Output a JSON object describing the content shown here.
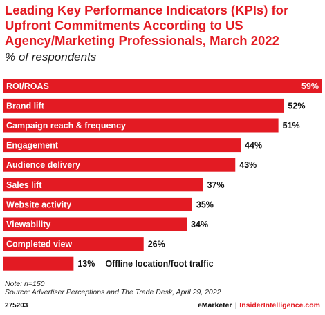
{
  "header": {
    "title": "Leading Key Performance Indicators (KPIs) for Upfront Commitments According to US Agency/Marketing Professionals, March 2022",
    "subtitle": "% of respondents"
  },
  "chart_data": {
    "type": "bar",
    "orientation": "horizontal",
    "categories": [
      "ROI/ROAS",
      "Brand lift",
      "Campaign reach & frequency",
      "Engagement",
      "Audience delivery",
      "Sales lift",
      "Website activity",
      "Viewability",
      "Completed view",
      "Offline location/foot traffic"
    ],
    "values": [
      59,
      52,
      51,
      44,
      43,
      37,
      35,
      34,
      26,
      13
    ],
    "value_labels": [
      "59%",
      "52%",
      "51%",
      "44%",
      "43%",
      "37%",
      "35%",
      "34%",
      "26%",
      "13%"
    ],
    "xlim": [
      0,
      59
    ],
    "bar_color": "#e31b23",
    "label_color_inside": "#ffffff",
    "grid": false,
    "legend": false
  },
  "footer": {
    "note": "Note: n=150",
    "source": "Source: Advertiser Perceptions and The Trade Desk, April 29, 2022",
    "chart_id": "275203",
    "brand_left": "eMarketer",
    "brand_separator": "|",
    "brand_right": "InsiderIntelligence.com"
  }
}
